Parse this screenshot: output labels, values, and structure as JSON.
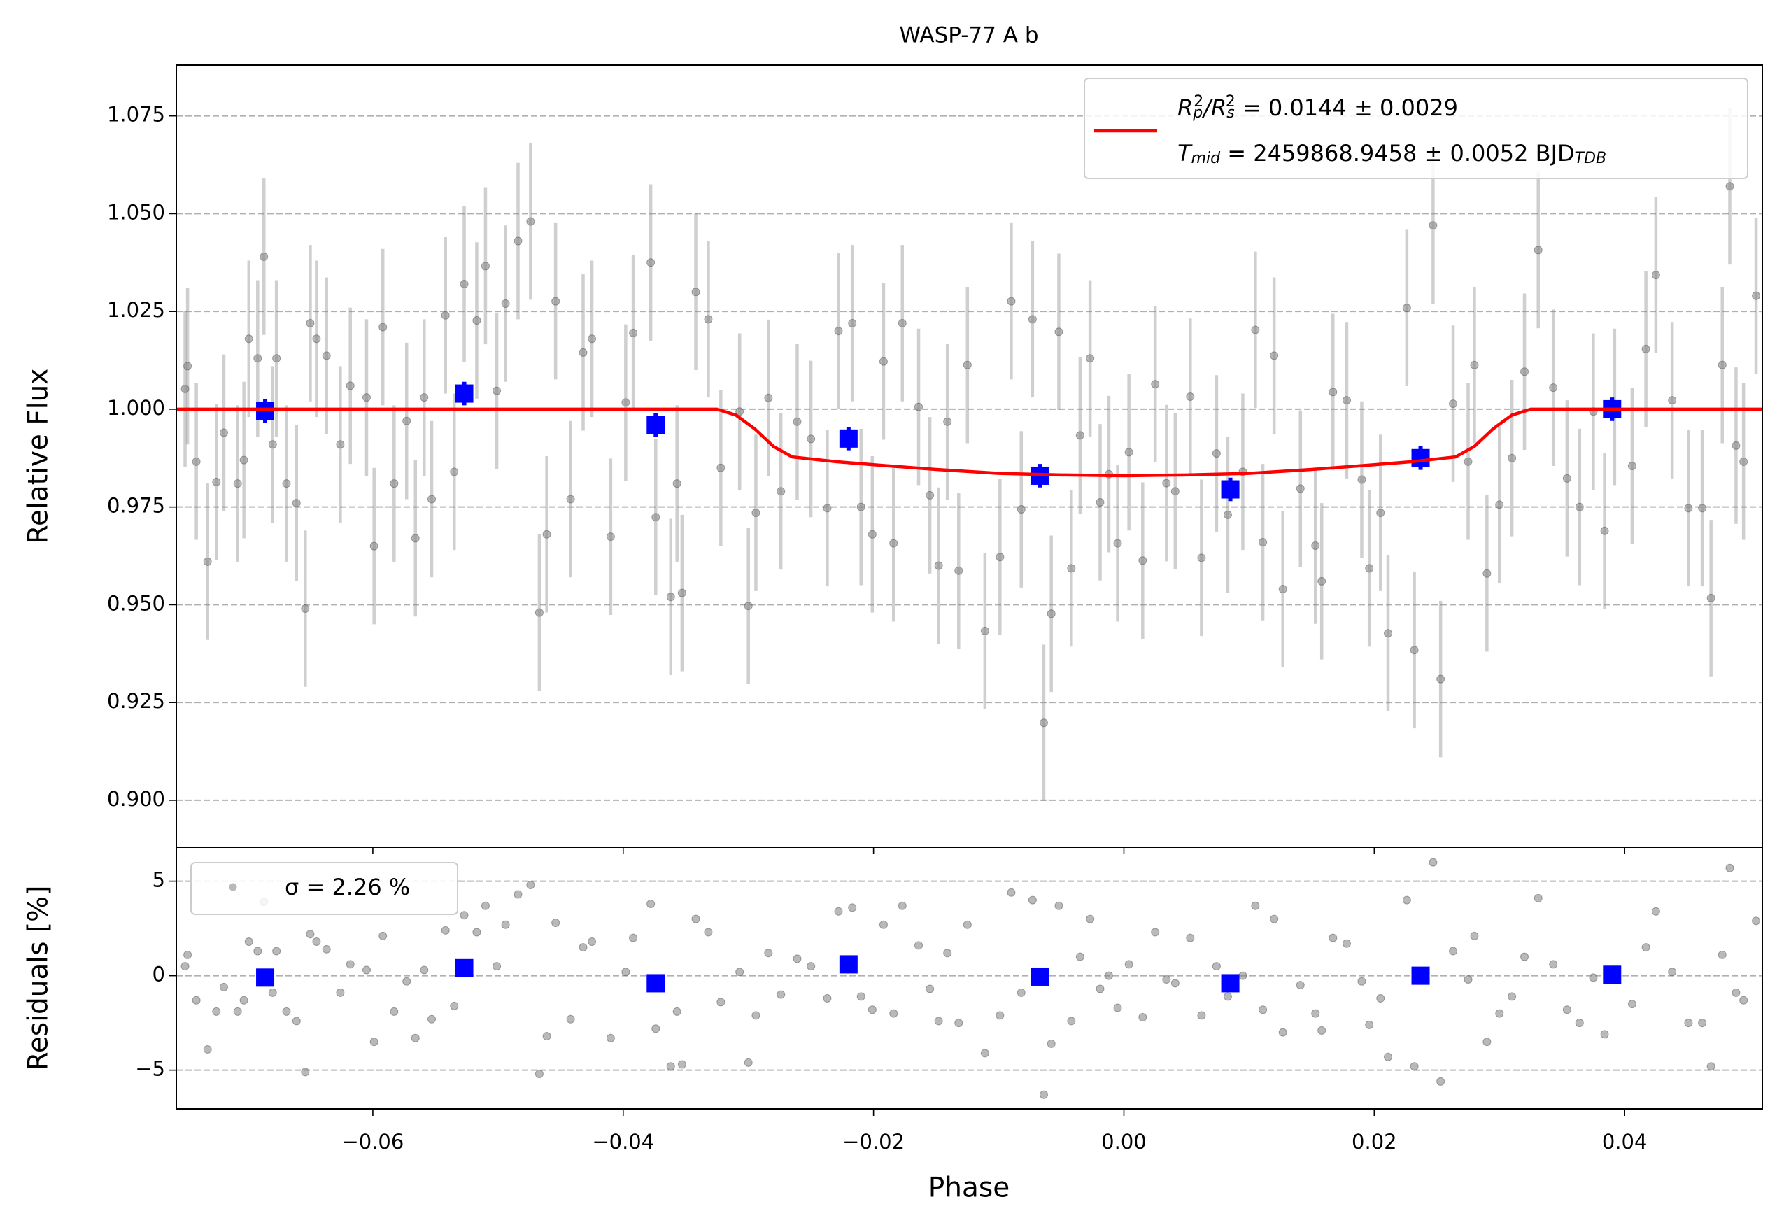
{
  "chart_data": [
    {
      "type": "scatter",
      "title": "WASP-77 A b",
      "ylabel": "Relative Flux",
      "xlim": [
        -0.0757,
        0.051
      ],
      "ylim": [
        0.888,
        1.088
      ],
      "yticks": [
        {
          "value": 0.9,
          "label": "0.900"
        },
        {
          "value": 0.925,
          "label": "0.925"
        },
        {
          "value": 0.95,
          "label": "0.950"
        },
        {
          "value": 0.975,
          "label": "0.975"
        },
        {
          "value": 1.0,
          "label": "1.000"
        },
        {
          "value": 1.025,
          "label": "1.025"
        },
        {
          "value": 1.05,
          "label": "1.050"
        },
        {
          "value": 1.075,
          "label": "1.075"
        }
      ],
      "grid": true,
      "series": [
        {
          "type": "errorbar",
          "color": "#808080",
          "yerr": 0.02,
          "x": [
            -0.075,
            -0.0748,
            -0.0741,
            -0.0732,
            -0.0725,
            -0.0719,
            -0.0708,
            -0.0703,
            -0.0699,
            -0.0692,
            -0.0687,
            -0.068,
            -0.0677,
            -0.0669,
            -0.0661,
            -0.0654,
            -0.065,
            -0.0645,
            -0.0637,
            -0.0626,
            -0.0618,
            -0.0605,
            -0.0599,
            -0.0592,
            -0.0583,
            -0.0573,
            -0.0566,
            -0.0559,
            -0.0553,
            -0.0542,
            -0.0535,
            -0.0527,
            -0.0517,
            -0.051,
            -0.0501,
            -0.0494,
            -0.0484,
            -0.0474,
            -0.0467,
            -0.0461,
            -0.0454,
            -0.0442,
            -0.0432,
            -0.0425,
            -0.041,
            -0.0398,
            -0.0392,
            -0.0378,
            -0.0374,
            -0.0362,
            -0.0357,
            -0.0353,
            -0.0342,
            -0.0332,
            -0.0322,
            -0.0307,
            -0.03,
            -0.0294,
            -0.0284,
            -0.0274,
            -0.0261,
            -0.025,
            -0.0237,
            -0.0228,
            -0.0217,
            -0.021,
            -0.0201,
            -0.0192,
            -0.0184,
            -0.0177,
            -0.0164,
            -0.0155,
            -0.0148,
            -0.0141,
            -0.0132,
            -0.0125,
            -0.0111,
            -0.0099,
            -0.009,
            -0.0082,
            -0.0073,
            -0.0064,
            -0.0058,
            -0.0052,
            -0.0042,
            -0.0035,
            -0.0027,
            -0.0019,
            -0.0012,
            -0.0005,
            0.0004,
            0.0015,
            0.0025,
            0.0034,
            0.0041,
            0.0053,
            0.0062,
            0.0074,
            0.0083,
            0.0095,
            0.0105,
            0.0111,
            0.012,
            0.0127,
            0.0141,
            0.0153,
            0.0158,
            0.0167,
            0.0178,
            0.019,
            0.0196,
            0.0205,
            0.0211,
            0.0226,
            0.0232,
            0.0247,
            0.0253,
            0.0263,
            0.0275,
            0.028,
            0.029,
            0.03,
            0.031,
            0.032,
            0.0331,
            0.0343,
            0.0354,
            0.0364,
            0.0375,
            0.0384,
            0.0392,
            0.0406,
            0.0417,
            0.0425,
            0.0438,
            0.0451,
            0.0462,
            0.0469,
            0.0478,
            0.0484,
            0.0489,
            0.0495,
            0.0505
          ],
          "values": [
            1.0052,
            1.011,
            0.9866,
            0.961,
            0.9814,
            0.994,
            0.981,
            0.987,
            1.018,
            1.013,
            1.039,
            0.991,
            1.013,
            0.981,
            0.976,
            0.949,
            1.022,
            1.018,
            1.0137,
            0.991,
            1.006,
            1.003,
            0.965,
            1.021,
            0.981,
            0.997,
            0.967,
            1.003,
            0.977,
            1.024,
            0.984,
            1.032,
            1.0227,
            1.0366,
            1.0047,
            1.027,
            1.043,
            1.048,
            0.948,
            0.968,
            1.0276,
            0.977,
            1.0145,
            1.018,
            0.9674,
            1.0017,
            1.0195,
            1.0375,
            0.9724,
            0.952,
            0.981,
            0.953,
            1.03,
            1.023,
            0.985,
            0.9994,
            0.9497,
            0.9735,
            1.0029,
            0.979,
            0.9968,
            0.9924,
            0.9747,
            1.02,
            1.022,
            0.975,
            0.968,
            1.0122,
            0.9657,
            1.022,
            1.0006,
            0.978,
            0.96,
            0.9968,
            0.9587,
            1.0113,
            0.9433,
            0.9622,
            1.0276,
            0.9744,
            1.023,
            0.9198,
            0.9477,
            1.0198,
            0.9593,
            0.9933,
            1.013,
            0.9762,
            0.9834,
            0.9657,
            0.989,
            0.9613,
            1.0064,
            0.9811,
            0.979,
            1.0032,
            0.962,
            0.9887,
            0.973,
            0.984,
            1.0203,
            0.966,
            1.0137,
            0.954,
            0.9797,
            0.9651,
            0.956,
            1.0044,
            1.0023,
            0.982,
            0.9593,
            0.9735,
            0.9427,
            1.0259,
            0.9384,
            1.047,
            0.931,
            1.0014,
            0.9866,
            1.0113,
            0.958,
            0.9756,
            0.9875,
            1.0096,
            1.0407,
            1.0055,
            0.9823,
            0.975,
            0.9994,
            0.9689,
            1.0006,
            0.9855,
            1.0154,
            1.0343,
            1.0023,
            0.9747,
            0.9747,
            0.9517,
            1.0113,
            1.057,
            0.9907,
            0.9866,
            1.029
          ]
        },
        {
          "type": "binned",
          "color": "#0000ff",
          "yerr": 0.003,
          "x": [
            -0.0686,
            -0.0527,
            -0.0374,
            -0.022,
            -0.0067,
            0.0085,
            0.0237,
            0.039
          ],
          "values": [
            0.9995,
            1.004,
            0.996,
            0.9925,
            0.983,
            0.9795,
            0.9875,
            1.0
          ]
        },
        {
          "type": "line",
          "color": "#ff0000",
          "x": [
            -0.0757,
            -0.0325,
            -0.031,
            -0.0295,
            -0.028,
            -0.0265,
            -0.023,
            -0.02,
            -0.015,
            -0.01,
            -0.005,
            0,
            0.005,
            0.01,
            0.015,
            0.02,
            0.023,
            0.0265,
            0.028,
            0.0295,
            0.031,
            0.0325,
            0.051
          ],
          "values": [
            1,
            1,
            0.9985,
            0.995,
            0.9905,
            0.9878,
            0.9866,
            0.9858,
            0.9846,
            0.9836,
            0.9832,
            0.983,
            0.9832,
            0.9836,
            0.9846,
            0.9858,
            0.9866,
            0.9878,
            0.9905,
            0.995,
            0.9985,
            1,
            1
          ],
          "name": [
            [
              {
                "text": "R",
                "italic": true
              },
              {
                "text": "p",
                "shift": "sub",
                "italic": true
              },
              {
                "text": "2",
                "shift": "sup"
              },
              {
                "text": "/R",
                "italic": true
              },
              {
                "text": "s",
                "shift": "sub",
                "italic": true
              },
              {
                "text": "2",
                "shift": "sup"
              },
              {
                "text": " = 0.0144 ± 0.0029"
              }
            ],
            [
              {
                "text": "T",
                "italic": true
              },
              {
                "text": "mid",
                "shift": "sub",
                "italic": true
              },
              {
                "text": " = 2459868.9458 ± 0.0052 BJD"
              },
              {
                "text": "TDB",
                "shift": "sub",
                "italic": true
              }
            ]
          ]
        }
      ]
    },
    {
      "type": "scatter",
      "ylabel": "Residuals [%]",
      "xlabel": "Phase",
      "xlim": [
        -0.0757,
        0.051
      ],
      "ylim": [
        -7.05,
        6.8
      ],
      "xticks": [
        {
          "value": -0.06,
          "label": "−0.06"
        },
        {
          "value": -0.04,
          "label": "−0.04"
        },
        {
          "value": -0.02,
          "label": "−0.02"
        },
        {
          "value": 0,
          "label": "0.00"
        },
        {
          "value": 0.02,
          "label": "0.02"
        },
        {
          "value": 0.04,
          "label": "0.04"
        }
      ],
      "yticks": [
        {
          "value": -5,
          "label": "−5"
        },
        0,
        5
      ],
      "grid": true,
      "legend_label": "σ = 2.26 %",
      "series": [
        {
          "type": "points",
          "color": "#808080",
          "values": [
            0.5,
            1.1,
            -1.3,
            -3.9,
            -1.9,
            -0.6,
            -1.9,
            -1.3,
            1.8,
            1.3,
            3.9,
            -0.9,
            1.3,
            -1.9,
            -2.4,
            -5.1,
            2.2,
            1.8,
            1.4,
            -0.9,
            0.6,
            0.3,
            -3.5,
            2.1,
            -1.9,
            -0.3,
            -3.3,
            0.3,
            -2.3,
            2.4,
            -1.6,
            3.2,
            2.3,
            3.7,
            0.5,
            2.7,
            4.3,
            4.8,
            -5.2,
            -3.2,
            2.8,
            -2.3,
            1.5,
            1.8,
            -3.3,
            0.2,
            2.0,
            3.8,
            -2.8,
            -4.8,
            -1.9,
            -4.7,
            3.0,
            2.3,
            -1.4,
            0.2,
            -4.6,
            -2.1,
            1.2,
            -1.0,
            0.9,
            0.5,
            -1.2,
            3.4,
            3.6,
            -1.1,
            -1.8,
            2.7,
            -2.0,
            3.7,
            1.6,
            -0.7,
            -2.4,
            1.2,
            -2.5,
            2.7,
            -4.1,
            -2.1,
            4.4,
            -0.9,
            4.0,
            -6.3,
            -3.6,
            3.7,
            -2.4,
            1.0,
            3.0,
            -0.7,
            0.0,
            -1.7,
            0.6,
            -2.2,
            2.3,
            -0.2,
            -0.4,
            2.0,
            -2.1,
            0.5,
            -1.1,
            0.0,
            3.7,
            -1.8,
            3.0,
            -3.0,
            -0.5,
            -2.0,
            -2.9,
            2.0,
            1.7,
            -0.3,
            -2.6,
            -1.2,
            -4.3,
            4.0,
            -4.8,
            6.0,
            -5.6,
            1.3,
            -0.2,
            2.1,
            -3.5,
            -2.0,
            -1.1,
            1.0,
            4.1,
            0.6,
            -1.8,
            -2.5,
            -0.1,
            -3.1,
            0.1,
            -1.5,
            1.5,
            3.4,
            0.2,
            -2.5,
            -2.5,
            -4.8,
            1.1,
            5.7,
            -0.9,
            -1.3,
            2.9
          ]
        },
        {
          "type": "binned",
          "color": "#0000ff",
          "values": [
            -0.1,
            0.4,
            -0.4,
            0.6,
            -0.05,
            -0.4,
            0.0,
            0.05
          ]
        }
      ]
    }
  ]
}
